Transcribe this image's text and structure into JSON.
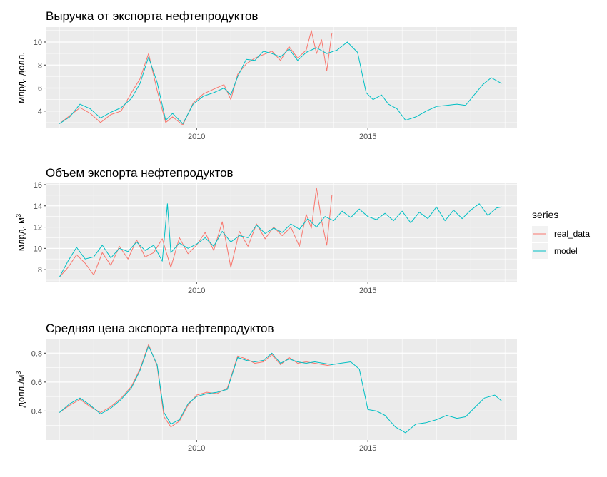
{
  "colors": {
    "real_data": "#F8766D",
    "model": "#00BFC4",
    "panel": "#EBEBEB",
    "grid": "#FFFFFF"
  },
  "legend": {
    "title": "series",
    "items": [
      {
        "label": "real_data",
        "color": "#F8766D"
      },
      {
        "label": "model",
        "color": "#00BFC4"
      }
    ]
  },
  "chart_data": [
    {
      "type": "line",
      "title": "Выручка от экспорта нефтепродуктов",
      "xlabel": "",
      "ylabel": "млрд. долл.",
      "ylabel_superscript": "",
      "xlim": [
        2005.6,
        2019.35
      ],
      "ylim": [
        2.5,
        11.3
      ],
      "xticks": [
        2010,
        2015
      ],
      "xtick_labels": [
        "2010",
        "2015"
      ],
      "yticks": [
        4,
        6,
        8,
        10
      ],
      "ytick_labels": [
        "4",
        "6",
        "8",
        "10"
      ],
      "series": [
        {
          "name": "real_data",
          "x": [
            2006.0,
            2006.3,
            2006.6,
            2006.9,
            2007.2,
            2007.5,
            2007.8,
            2008.1,
            2008.35,
            2008.6,
            2008.85,
            2009.1,
            2009.3,
            2009.6,
            2009.9,
            2010.2,
            2010.5,
            2010.8,
            2011.0,
            2011.2,
            2011.45,
            2011.7,
            2011.95,
            2012.2,
            2012.45,
            2012.7,
            2012.95,
            2013.2,
            2013.35,
            2013.5,
            2013.65,
            2013.8,
            2013.95
          ],
          "y": [
            2.9,
            3.6,
            4.3,
            3.8,
            3.0,
            3.7,
            4.0,
            5.6,
            6.8,
            9.0,
            5.8,
            3.0,
            3.5,
            2.8,
            4.7,
            5.5,
            5.9,
            6.3,
            5.0,
            7.2,
            8.1,
            8.6,
            8.9,
            9.2,
            8.4,
            9.6,
            8.6,
            9.3,
            11.0,
            9.0,
            10.2,
            7.5,
            10.8
          ]
        },
        {
          "name": "model",
          "x": [
            2006.0,
            2006.3,
            2006.6,
            2006.9,
            2007.2,
            2007.5,
            2007.8,
            2008.1,
            2008.35,
            2008.6,
            2008.85,
            2009.1,
            2009.3,
            2009.6,
            2009.9,
            2010.2,
            2010.5,
            2010.8,
            2011.0,
            2011.2,
            2011.45,
            2011.7,
            2011.95,
            2012.2,
            2012.45,
            2012.7,
            2012.95,
            2013.2,
            2013.5,
            2013.8,
            2014.1,
            2014.4,
            2014.7,
            2014.95,
            2015.15,
            2015.4,
            2015.6,
            2015.85,
            2016.1,
            2016.4,
            2016.7,
            2017.0,
            2017.3,
            2017.6,
            2017.85,
            2018.1,
            2018.35,
            2018.6,
            2018.9
          ],
          "y": [
            2.9,
            3.5,
            4.6,
            4.2,
            3.4,
            3.9,
            4.3,
            5.1,
            6.4,
            8.7,
            6.5,
            3.2,
            3.8,
            2.9,
            4.6,
            5.3,
            5.6,
            6.0,
            5.4,
            7.0,
            8.5,
            8.4,
            9.2,
            9.0,
            8.7,
            9.4,
            8.4,
            9.1,
            9.5,
            9.0,
            9.3,
            10.0,
            9.1,
            5.6,
            5.0,
            5.4,
            4.6,
            4.2,
            3.2,
            3.5,
            4.0,
            4.4,
            4.5,
            4.6,
            4.5,
            5.4,
            6.3,
            6.9,
            6.4
          ]
        }
      ]
    },
    {
      "type": "line",
      "title": "Объем экспорта нефтепродуктов",
      "xlabel": "",
      "ylabel": "млрд. м",
      "ylabel_superscript": "3",
      "xlim": [
        2005.6,
        2019.35
      ],
      "ylim": [
        6.8,
        16.2
      ],
      "xticks": [
        2010,
        2015
      ],
      "xtick_labels": [
        "2010",
        "2015"
      ],
      "yticks": [
        8,
        10,
        12,
        14,
        16
      ],
      "ytick_labels": [
        "8",
        "10",
        "12",
        "14",
        "16"
      ],
      "series": [
        {
          "name": "real_data",
          "x": [
            2006.0,
            2006.25,
            2006.5,
            2006.75,
            2007.0,
            2007.25,
            2007.5,
            2007.75,
            2008.0,
            2008.25,
            2008.5,
            2008.75,
            2009.0,
            2009.25,
            2009.5,
            2009.75,
            2010.0,
            2010.25,
            2010.5,
            2010.75,
            2011.0,
            2011.25,
            2011.5,
            2011.75,
            2012.0,
            2012.25,
            2012.5,
            2012.75,
            2013.0,
            2013.2,
            2013.35,
            2013.5,
            2013.65,
            2013.8,
            2013.95
          ],
          "y": [
            7.3,
            8.2,
            9.4,
            8.6,
            7.5,
            9.6,
            8.4,
            10.2,
            9.0,
            10.8,
            9.2,
            9.6,
            10.9,
            8.2,
            11.0,
            9.5,
            10.3,
            11.5,
            9.8,
            12.5,
            8.2,
            11.6,
            10.2,
            12.3,
            10.9,
            12.0,
            11.2,
            12.0,
            10.2,
            13.2,
            11.9,
            15.7,
            12.6,
            10.3,
            15.0
          ]
        },
        {
          "name": "model",
          "x": [
            2006.0,
            2006.25,
            2006.5,
            2006.75,
            2007.0,
            2007.25,
            2007.5,
            2007.75,
            2008.0,
            2008.25,
            2008.5,
            2008.75,
            2009.0,
            2009.15,
            2009.25,
            2009.5,
            2009.75,
            2010.0,
            2010.25,
            2010.5,
            2010.75,
            2011.0,
            2011.25,
            2011.5,
            2011.75,
            2012.0,
            2012.25,
            2012.5,
            2012.75,
            2013.0,
            2013.25,
            2013.5,
            2013.75,
            2014.0,
            2014.25,
            2014.5,
            2014.75,
            2015.0,
            2015.25,
            2015.5,
            2015.75,
            2016.0,
            2016.25,
            2016.5,
            2016.75,
            2017.0,
            2017.25,
            2017.5,
            2017.75,
            2018.0,
            2018.25,
            2018.5,
            2018.75,
            2018.9
          ],
          "y": [
            7.3,
            8.8,
            10.1,
            9.0,
            9.2,
            10.3,
            9.1,
            10.0,
            9.7,
            10.6,
            9.8,
            10.3,
            8.8,
            14.2,
            9.6,
            10.5,
            10.0,
            10.4,
            11.0,
            10.2,
            11.6,
            10.6,
            11.2,
            11.0,
            12.2,
            11.4,
            11.9,
            11.5,
            12.3,
            11.8,
            12.8,
            12.0,
            13.0,
            12.6,
            13.5,
            12.9,
            13.7,
            13.0,
            12.7,
            13.3,
            12.6,
            13.5,
            12.4,
            13.4,
            12.8,
            13.9,
            12.6,
            13.6,
            12.8,
            13.6,
            14.2,
            13.1,
            13.8,
            13.9
          ]
        }
      ]
    },
    {
      "type": "line",
      "title": "Средняя цена экспорта нефтепродуктов",
      "xlabel": "",
      "ylabel": "долл./м",
      "ylabel_superscript": "3",
      "xlim": [
        2005.6,
        2019.35
      ],
      "ylim": [
        0.2,
        0.9
      ],
      "xticks": [
        2010,
        2015
      ],
      "xtick_labels": [
        "2010",
        "2015"
      ],
      "yticks": [
        0.4,
        0.6,
        0.8
      ],
      "ytick_labels": [
        "0.4",
        "0.6",
        "0.8"
      ],
      "series": [
        {
          "name": "real_data",
          "x": [
            2006.0,
            2006.3,
            2006.6,
            2006.9,
            2007.2,
            2007.5,
            2007.8,
            2008.1,
            2008.35,
            2008.6,
            2008.85,
            2009.05,
            2009.25,
            2009.5,
            2009.75,
            2010.0,
            2010.3,
            2010.6,
            2010.9,
            2011.2,
            2011.45,
            2011.7,
            2011.95,
            2012.2,
            2012.45,
            2012.7,
            2012.95,
            2013.2,
            2013.45,
            2013.7,
            2013.95
          ],
          "y": [
            0.39,
            0.44,
            0.48,
            0.43,
            0.39,
            0.43,
            0.49,
            0.57,
            0.69,
            0.86,
            0.71,
            0.36,
            0.29,
            0.33,
            0.44,
            0.51,
            0.53,
            0.52,
            0.56,
            0.78,
            0.76,
            0.73,
            0.74,
            0.79,
            0.72,
            0.77,
            0.73,
            0.74,
            0.73,
            0.72,
            0.71
          ]
        },
        {
          "name": "model",
          "x": [
            2006.0,
            2006.3,
            2006.6,
            2006.9,
            2007.2,
            2007.5,
            2007.8,
            2008.1,
            2008.35,
            2008.6,
            2008.85,
            2009.05,
            2009.25,
            2009.5,
            2009.75,
            2010.0,
            2010.3,
            2010.6,
            2010.9,
            2011.2,
            2011.45,
            2011.7,
            2011.95,
            2012.2,
            2012.45,
            2012.7,
            2012.95,
            2013.2,
            2013.45,
            2013.7,
            2013.95,
            2014.2,
            2014.5,
            2014.75,
            2015.0,
            2015.25,
            2015.5,
            2015.8,
            2016.1,
            2016.4,
            2016.7,
            2017.0,
            2017.3,
            2017.6,
            2017.85,
            2018.1,
            2018.4,
            2018.7,
            2018.9
          ],
          "y": [
            0.39,
            0.45,
            0.49,
            0.44,
            0.38,
            0.42,
            0.48,
            0.56,
            0.68,
            0.85,
            0.72,
            0.39,
            0.31,
            0.34,
            0.45,
            0.5,
            0.52,
            0.53,
            0.55,
            0.77,
            0.75,
            0.74,
            0.75,
            0.8,
            0.73,
            0.76,
            0.74,
            0.73,
            0.74,
            0.73,
            0.72,
            0.73,
            0.74,
            0.69,
            0.41,
            0.4,
            0.37,
            0.29,
            0.25,
            0.31,
            0.32,
            0.34,
            0.37,
            0.35,
            0.36,
            0.42,
            0.49,
            0.51,
            0.47
          ]
        }
      ]
    }
  ]
}
